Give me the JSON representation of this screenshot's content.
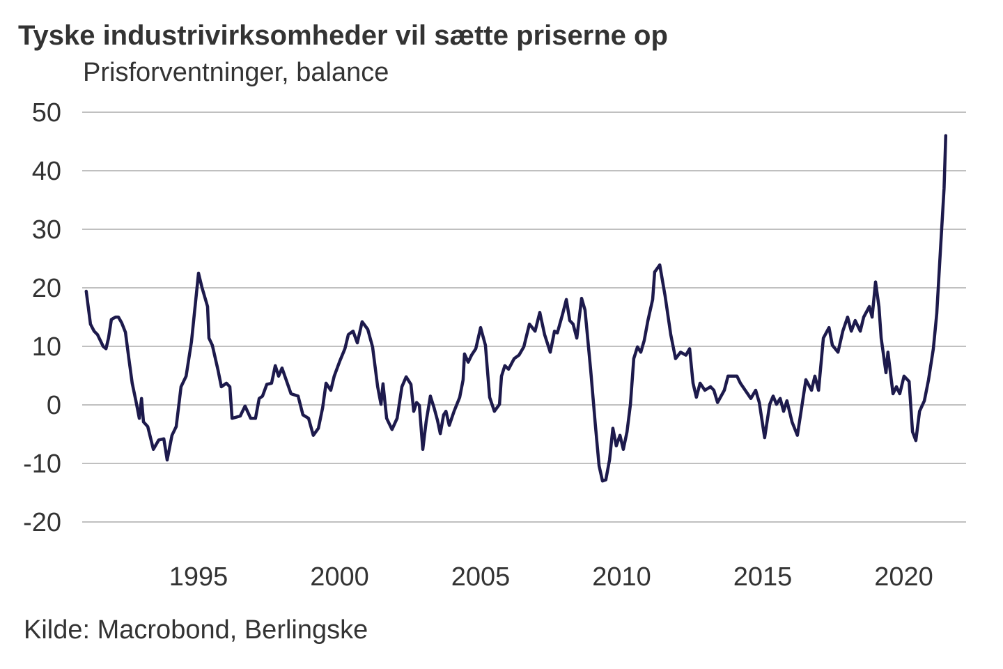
{
  "chart_data": {
    "type": "line",
    "title": "Tyske industrivirksomheder vil sætte priserne op",
    "subtitle": "Prisforventninger, balance",
    "source": "Kilde: Macrobond, Berlingske",
    "xlabel": "",
    "ylabel": "Prisforventninger, balance",
    "ylim": [
      -20,
      50
    ],
    "xlim": [
      1991,
      2021.9
    ],
    "y_ticks": [
      50,
      40,
      30,
      20,
      10,
      0,
      -10,
      -20
    ],
    "y_tick_labels": [
      "50",
      "40",
      "30",
      "20",
      "10",
      "0",
      "-10",
      "-20"
    ],
    "x_ticks": [
      1995,
      2000,
      2005,
      2010,
      2015,
      2020
    ],
    "x_tick_labels": [
      "1995",
      "2000",
      "2005",
      "2010",
      "2015",
      "2020"
    ],
    "grid": true,
    "line_color": "#1d1a4c",
    "series": [
      {
        "name": "Prisforventninger",
        "points": [
          [
            1991.02,
            19.4
          ],
          [
            1991.17,
            13.8
          ],
          [
            1991.3,
            12.6
          ],
          [
            1991.42,
            12.0
          ],
          [
            1991.62,
            10.0
          ],
          [
            1991.72,
            9.6
          ],
          [
            1991.81,
            11.4
          ],
          [
            1991.91,
            14.6
          ],
          [
            1992.06,
            15.0
          ],
          [
            1992.16,
            15.0
          ],
          [
            1992.28,
            14.0
          ],
          [
            1992.41,
            12.4
          ],
          [
            1992.53,
            7.9
          ],
          [
            1992.65,
            3.7
          ],
          [
            1992.78,
            0.7
          ],
          [
            1992.9,
            -2.3
          ],
          [
            1992.98,
            1.1
          ],
          [
            1993.05,
            -2.9
          ],
          [
            1993.2,
            -3.7
          ],
          [
            1993.4,
            -7.6
          ],
          [
            1993.59,
            -6.0
          ],
          [
            1993.77,
            -5.8
          ],
          [
            1993.89,
            -9.4
          ],
          [
            1994.06,
            -5.2
          ],
          [
            1994.21,
            -3.7
          ],
          [
            1994.38,
            3.1
          ],
          [
            1994.56,
            4.9
          ],
          [
            1994.75,
            10.8
          ],
          [
            1995.0,
            22.5
          ],
          [
            1995.12,
            20.1
          ],
          [
            1995.32,
            16.8
          ],
          [
            1995.37,
            11.4
          ],
          [
            1995.49,
            10.2
          ],
          [
            1995.69,
            6.0
          ],
          [
            1995.81,
            3.1
          ],
          [
            1995.99,
            3.7
          ],
          [
            1996.11,
            3.1
          ],
          [
            1996.19,
            -2.3
          ],
          [
            1996.48,
            -1.9
          ],
          [
            1996.65,
            -0.2
          ],
          [
            1996.85,
            -2.3
          ],
          [
            1997.02,
            -2.3
          ],
          [
            1997.15,
            1.1
          ],
          [
            1997.27,
            1.5
          ],
          [
            1997.42,
            3.5
          ],
          [
            1997.59,
            3.7
          ],
          [
            1997.72,
            6.7
          ],
          [
            1997.84,
            4.9
          ],
          [
            1997.96,
            6.3
          ],
          [
            1998.28,
            1.9
          ],
          [
            1998.53,
            1.5
          ],
          [
            1998.7,
            -1.7
          ],
          [
            1998.9,
            -2.3
          ],
          [
            1999.07,
            -5.2
          ],
          [
            1999.25,
            -4.0
          ],
          [
            1999.4,
            -0.5
          ],
          [
            1999.52,
            3.7
          ],
          [
            1999.69,
            2.5
          ],
          [
            1999.81,
            4.9
          ],
          [
            2000.01,
            7.5
          ],
          [
            2000.19,
            9.6
          ],
          [
            2000.31,
            12.0
          ],
          [
            2000.48,
            12.6
          ],
          [
            2000.63,
            10.6
          ],
          [
            2000.8,
            14.2
          ],
          [
            2001.0,
            12.9
          ],
          [
            2001.17,
            9.9
          ],
          [
            2001.35,
            3.1
          ],
          [
            2001.47,
            0.1
          ],
          [
            2001.54,
            3.6
          ],
          [
            2001.67,
            -2.3
          ],
          [
            2001.86,
            -4.2
          ],
          [
            2002.04,
            -2.3
          ],
          [
            2002.21,
            3.1
          ],
          [
            2002.36,
            4.8
          ],
          [
            2002.53,
            3.5
          ],
          [
            2002.63,
            -1.1
          ],
          [
            2002.73,
            0.4
          ],
          [
            2002.83,
            -0.1
          ],
          [
            2002.95,
            -7.6
          ],
          [
            2003.07,
            -2.9
          ],
          [
            2003.22,
            1.5
          ],
          [
            2003.35,
            -0.5
          ],
          [
            2003.47,
            -2.6
          ],
          [
            2003.57,
            -4.9
          ],
          [
            2003.69,
            -1.7
          ],
          [
            2003.77,
            -1.1
          ],
          [
            2003.89,
            -3.5
          ],
          [
            2004.06,
            -1.1
          ],
          [
            2004.26,
            1.3
          ],
          [
            2004.38,
            4.3
          ],
          [
            2004.43,
            8.7
          ],
          [
            2004.56,
            7.3
          ],
          [
            2004.68,
            8.5
          ],
          [
            2004.83,
            9.6
          ],
          [
            2005.0,
            13.2
          ],
          [
            2005.17,
            10.2
          ],
          [
            2005.32,
            1.3
          ],
          [
            2005.49,
            -1.1
          ],
          [
            2005.67,
            0.1
          ],
          [
            2005.74,
            4.9
          ],
          [
            2005.86,
            6.7
          ],
          [
            2005.99,
            6.1
          ],
          [
            2006.19,
            7.9
          ],
          [
            2006.36,
            8.5
          ],
          [
            2006.53,
            9.9
          ],
          [
            2006.73,
            13.8
          ],
          [
            2006.93,
            12.6
          ],
          [
            2007.1,
            15.8
          ],
          [
            2007.27,
            12.0
          ],
          [
            2007.47,
            9.0
          ],
          [
            2007.62,
            12.6
          ],
          [
            2007.72,
            12.3
          ],
          [
            2007.91,
            15.6
          ],
          [
            2008.04,
            18.0
          ],
          [
            2008.16,
            14.4
          ],
          [
            2008.28,
            13.8
          ],
          [
            2008.41,
            11.4
          ],
          [
            2008.58,
            18.2
          ],
          [
            2008.7,
            16.2
          ],
          [
            2008.9,
            6.0
          ],
          [
            2009.07,
            -3.5
          ],
          [
            2009.2,
            -10.4
          ],
          [
            2009.32,
            -13.0
          ],
          [
            2009.44,
            -12.8
          ],
          [
            2009.57,
            -9.4
          ],
          [
            2009.69,
            -4.0
          ],
          [
            2009.81,
            -7.0
          ],
          [
            2009.94,
            -5.2
          ],
          [
            2010.06,
            -7.6
          ],
          [
            2010.19,
            -4.6
          ],
          [
            2010.31,
            0.1
          ],
          [
            2010.43,
            7.9
          ],
          [
            2010.56,
            9.9
          ],
          [
            2010.68,
            9.0
          ],
          [
            2010.8,
            11.0
          ],
          [
            2010.93,
            14.4
          ],
          [
            2011.1,
            18.0
          ],
          [
            2011.17,
            22.7
          ],
          [
            2011.35,
            23.9
          ],
          [
            2011.54,
            18.6
          ],
          [
            2011.74,
            12.0
          ],
          [
            2011.91,
            7.9
          ],
          [
            2012.09,
            9.0
          ],
          [
            2012.28,
            8.5
          ],
          [
            2012.41,
            9.6
          ],
          [
            2012.53,
            3.7
          ],
          [
            2012.65,
            1.3
          ],
          [
            2012.78,
            3.7
          ],
          [
            2012.95,
            2.5
          ],
          [
            2013.15,
            3.1
          ],
          [
            2013.27,
            2.5
          ],
          [
            2013.4,
            0.4
          ],
          [
            2013.64,
            2.5
          ],
          [
            2013.77,
            4.9
          ],
          [
            2013.94,
            4.9
          ],
          [
            2014.09,
            4.9
          ],
          [
            2014.21,
            3.7
          ],
          [
            2014.38,
            2.5
          ],
          [
            2014.58,
            1.1
          ],
          [
            2014.75,
            2.5
          ],
          [
            2014.88,
            0.4
          ],
          [
            2015.07,
            -5.6
          ],
          [
            2015.25,
            0.1
          ],
          [
            2015.37,
            1.5
          ],
          [
            2015.49,
            0.1
          ],
          [
            2015.62,
            1.1
          ],
          [
            2015.74,
            -1.1
          ],
          [
            2015.86,
            0.7
          ],
          [
            2016.04,
            -2.9
          ],
          [
            2016.23,
            -5.2
          ],
          [
            2016.36,
            -1.1
          ],
          [
            2016.53,
            4.3
          ],
          [
            2016.73,
            2.5
          ],
          [
            2016.85,
            4.9
          ],
          [
            2016.98,
            2.5
          ],
          [
            2017.15,
            11.4
          ],
          [
            2017.35,
            13.2
          ],
          [
            2017.47,
            10.2
          ],
          [
            2017.67,
            9.0
          ],
          [
            2017.84,
            12.6
          ],
          [
            2018.01,
            15.0
          ],
          [
            2018.14,
            12.6
          ],
          [
            2018.28,
            14.4
          ],
          [
            2018.46,
            12.6
          ],
          [
            2018.58,
            15.0
          ],
          [
            2018.78,
            16.8
          ],
          [
            2018.88,
            15.0
          ],
          [
            2019.0,
            21.0
          ],
          [
            2019.12,
            16.8
          ],
          [
            2019.2,
            11.4
          ],
          [
            2019.37,
            5.5
          ],
          [
            2019.44,
            9.0
          ],
          [
            2019.62,
            1.9
          ],
          [
            2019.74,
            3.1
          ],
          [
            2019.86,
            1.9
          ],
          [
            2020.01,
            4.9
          ],
          [
            2020.19,
            4.0
          ],
          [
            2020.31,
            -4.6
          ],
          [
            2020.43,
            -6.1
          ],
          [
            2020.56,
            -1.1
          ],
          [
            2020.73,
            0.7
          ],
          [
            2020.88,
            4.3
          ],
          [
            2021.05,
            9.6
          ],
          [
            2021.17,
            15.6
          ],
          [
            2021.3,
            26.3
          ],
          [
            2021.43,
            37.0
          ],
          [
            2021.49,
            46.0
          ]
        ]
      }
    ]
  }
}
